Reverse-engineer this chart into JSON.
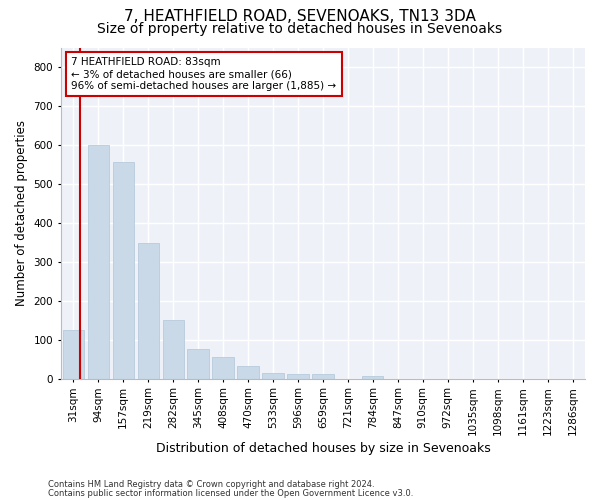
{
  "title1": "7, HEATHFIELD ROAD, SEVENOAKS, TN13 3DA",
  "title2": "Size of property relative to detached houses in Sevenoaks",
  "xlabel": "Distribution of detached houses by size in Sevenoaks",
  "ylabel": "Number of detached properties",
  "categories": [
    "31sqm",
    "94sqm",
    "157sqm",
    "219sqm",
    "282sqm",
    "345sqm",
    "408sqm",
    "470sqm",
    "533sqm",
    "596sqm",
    "659sqm",
    "721sqm",
    "784sqm",
    "847sqm",
    "910sqm",
    "972sqm",
    "1035sqm",
    "1098sqm",
    "1161sqm",
    "1223sqm",
    "1286sqm"
  ],
  "values": [
    125,
    600,
    555,
    348,
    150,
    75,
    55,
    33,
    15,
    13,
    13,
    0,
    8,
    0,
    0,
    0,
    0,
    0,
    0,
    0,
    0
  ],
  "bar_color": "#c9d9e8",
  "bar_edge_color": "#b0c4d8",
  "vline_color": "#cc0000",
  "annotation_text": "7 HEATHFIELD ROAD: 83sqm\n← 3% of detached houses are smaller (66)\n96% of semi-detached houses are larger (1,885) →",
  "annotation_box_color": "#cc0000",
  "ylim": [
    0,
    850
  ],
  "yticks": [
    0,
    100,
    200,
    300,
    400,
    500,
    600,
    700,
    800
  ],
  "footnote1": "Contains HM Land Registry data © Crown copyright and database right 2024.",
  "footnote2": "Contains public sector information licensed under the Open Government Licence v3.0.",
  "bg_color": "#ffffff",
  "plot_bg_color": "#eef2f8",
  "grid_color": "#ffffff",
  "title1_fontsize": 11,
  "title2_fontsize": 10,
  "xlabel_fontsize": 9,
  "ylabel_fontsize": 8.5,
  "tick_fontsize": 7.5,
  "annot_fontsize": 7.5,
  "footnote_fontsize": 6
}
